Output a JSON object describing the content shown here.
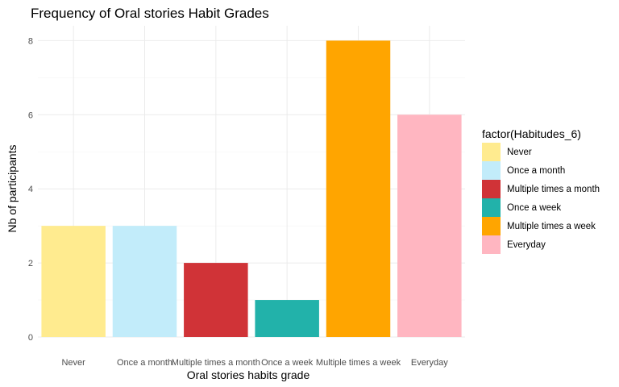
{
  "chart_data": {
    "type": "bar",
    "title": "Frequency of Oral stories Habit Grades",
    "xlabel": "Oral stories habits grade",
    "ylabel": "Nb of participants",
    "categories": [
      "Never",
      "Once a month",
      "Multiple times a month",
      "Once a week",
      "Multiple times a week",
      "Everyday"
    ],
    "values": [
      3,
      3,
      2,
      1,
      8,
      6
    ],
    "colors": [
      "#FFEB8F",
      "#C2ECFA",
      "#D03337",
      "#22B2AA",
      "#FFA500",
      "#FFB6C1"
    ],
    "ylim": [
      0,
      8.4
    ],
    "yticks": [
      0,
      2,
      4,
      6,
      8
    ],
    "grid": true,
    "legend": {
      "title": "factor(Habitudes_6)",
      "placement": "right",
      "entries": [
        "Never",
        "Once a month",
        "Multiple times a month",
        "Once a week",
        "Multiple times a week",
        "Everyday"
      ]
    }
  }
}
